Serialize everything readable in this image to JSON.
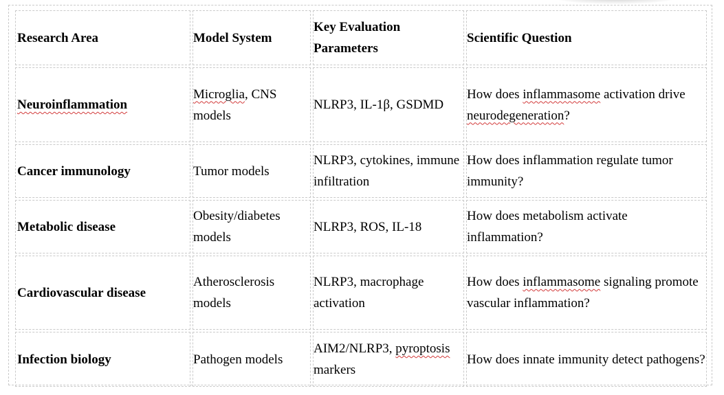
{
  "table": {
    "headers": [
      "Research Area",
      "Model System",
      "Key Evaluation Parameters",
      "Scientific Question"
    ],
    "rows": [
      {
        "area": "Neuroinflammation",
        "model_a": "Microglia",
        "model_b": ", CNS models",
        "parameters": "NLRP3, IL-1β, GSDMD",
        "question_a": "How does ",
        "question_b": "inflammasome",
        "question_c": " activation drive ",
        "question_d": "neurodegeneration",
        "question_e": "?"
      },
      {
        "area": "Cancer immunology",
        "model": "Tumor models",
        "parameters": "NLRP3, cytokines, immune infiltration",
        "question": "How does inflammation regulate tumor immunity?"
      },
      {
        "area": "Metabolic disease",
        "model": "Obesity/diabetes models",
        "parameters": "NLRP3, ROS, IL-18",
        "question": "How does metabolism activate inflammation?"
      },
      {
        "area": "Cardiovascular disease",
        "model": "Atherosclerosis models",
        "parameters": "NLRP3, macrophage activation",
        "question_a": "How does ",
        "question_b": "inflammasome",
        "question_c": " signaling promote vascular inflammation?"
      },
      {
        "area": "Infection biology",
        "model": "Pathogen models",
        "parameters_a": "AIM2/NLRP3, ",
        "parameters_b": "pyroptosis",
        "parameters_c": " markers",
        "question": "How does innate immunity detect pathogens?"
      }
    ]
  }
}
